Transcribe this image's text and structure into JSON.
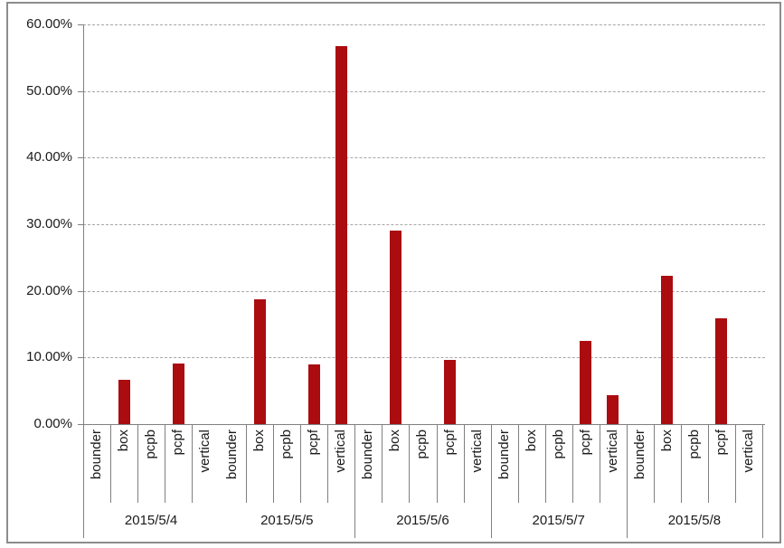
{
  "chart_data": {
    "type": "bar",
    "title": "",
    "xlabel": "",
    "ylabel": "",
    "unit": "percent",
    "ylim": [
      0,
      60
    ],
    "grid": "horizontal-dashed",
    "legend": "none",
    "bar_color": "#aa0c10",
    "axis_color": "#808080",
    "gridline_color": "#a6a6a6",
    "y_tick_labels": [
      "60.00%",
      "50.00%",
      "40.00%",
      "30.00%",
      "20.00%",
      "10.00%",
      "0.00%"
    ],
    "y_tick_values": [
      60,
      50,
      40,
      30,
      20,
      10,
      0
    ],
    "sub_categories": [
      "bounder",
      "box",
      "pcpb",
      "pcpf",
      "vertical"
    ],
    "groups": [
      {
        "label": "2015/5/4",
        "values": [
          0,
          6.6,
          0,
          9.1,
          0
        ]
      },
      {
        "label": "2015/5/5",
        "values": [
          0,
          18.8,
          0,
          9.0,
          56.8
        ]
      },
      {
        "label": "2015/5/6",
        "values": [
          0,
          29.1,
          0,
          9.6,
          0
        ]
      },
      {
        "label": "2015/5/7",
        "values": [
          0,
          0,
          0,
          12.5,
          4.3
        ]
      },
      {
        "label": "2015/5/8",
        "values": [
          0,
          22.3,
          0,
          15.9,
          0
        ]
      }
    ]
  }
}
